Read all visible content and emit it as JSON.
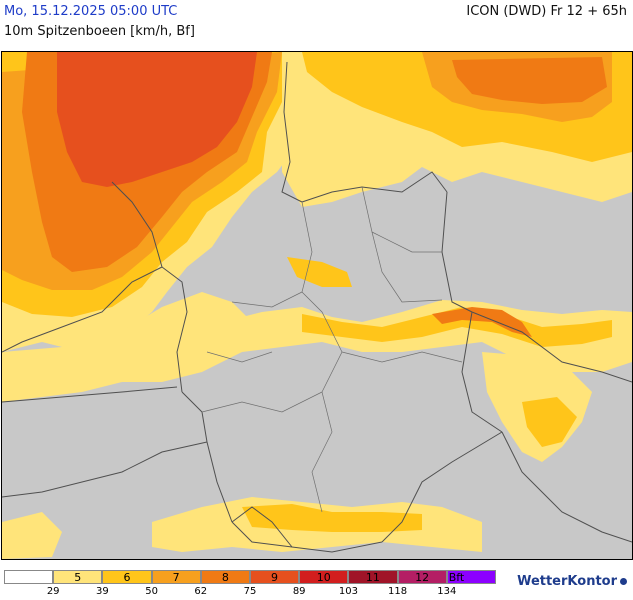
{
  "header": {
    "date_label": "Mo, 15.12.2025 05:00 UTC",
    "model_label": "ICON (DWD) Fr 12 + 65h",
    "parameter_label": "10m Spitzenboeen [km/h, Bf]"
  },
  "legend": {
    "cells": [
      {
        "bf": "",
        "color": "#ffffff"
      },
      {
        "bf": "5",
        "color": "#ffe47a"
      },
      {
        "bf": "6",
        "color": "#ffc51a"
      },
      {
        "bf": "7",
        "color": "#f7a01e"
      },
      {
        "bf": "8",
        "color": "#f07a14"
      },
      {
        "bf": "9",
        "color": "#e6501e"
      },
      {
        "bf": "10",
        "color": "#d21e1e"
      },
      {
        "bf": "11",
        "color": "#a01428"
      },
      {
        "bf": "12",
        "color": "#b41e64"
      },
      {
        "bf": "Bft",
        "color": "#8c00ff"
      }
    ],
    "ticks": [
      "29",
      "39",
      "50",
      "62",
      "75",
      "89",
      "103",
      "118",
      "134"
    ]
  },
  "logo": {
    "text": "WetterKontor"
  },
  "colors": {
    "land_gray": "#c8c8c8",
    "border": "#505050",
    "text_blue": "#1e3cc8"
  }
}
